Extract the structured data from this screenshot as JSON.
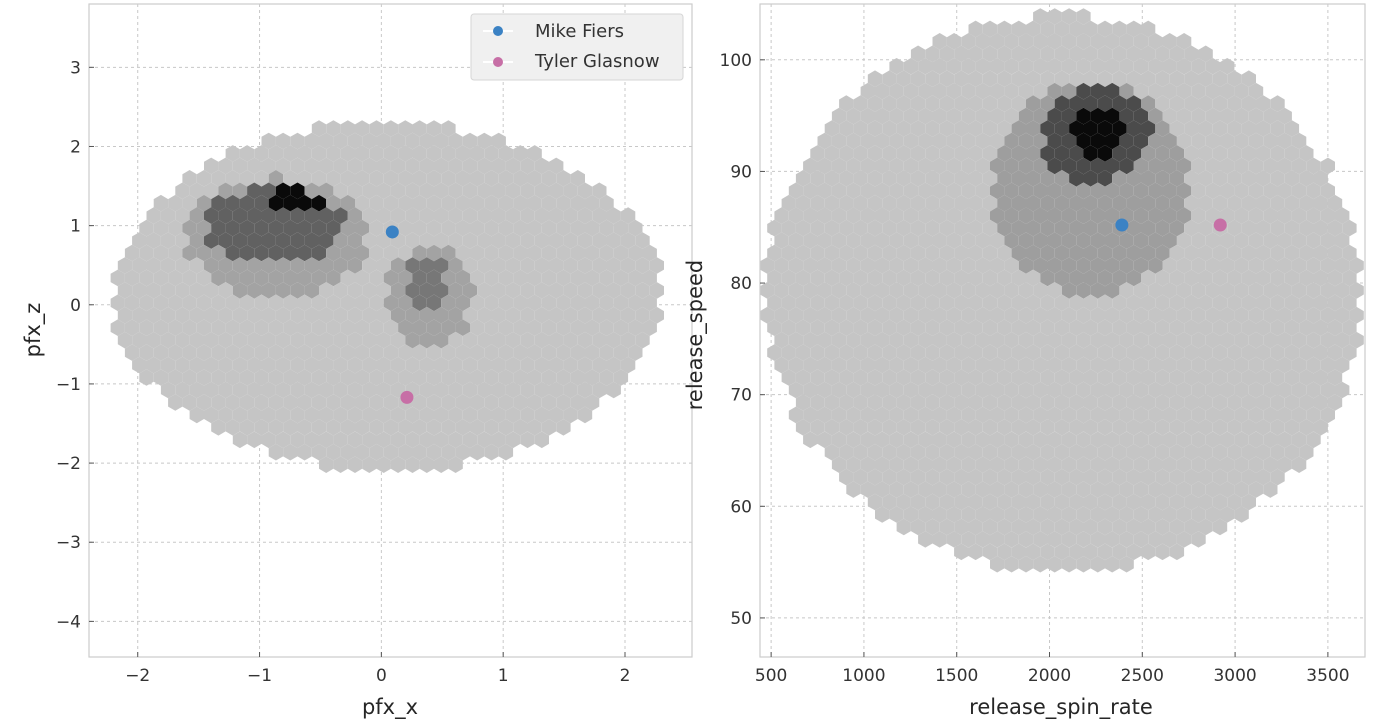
{
  "chart_data": [
    {
      "type": "hexbin",
      "xlabel": "pfx_x",
      "ylabel": "pfx_z",
      "xlim": [
        -2.4,
        2.55
      ],
      "ylim": [
        -4.45,
        3.8
      ],
      "xticks": [
        "−2",
        "−1",
        "0",
        "1",
        "2"
      ],
      "xtick_values": [
        -2,
        -1,
        0,
        1,
        2
      ],
      "yticks": [
        "−4",
        "−3",
        "−2",
        "−1",
        "0",
        "1",
        "2",
        "3"
      ],
      "ytick_values": [
        -4,
        -3,
        -2,
        -1,
        0,
        1,
        2,
        3
      ],
      "grid": true,
      "legend_position": "top-right",
      "background_density": {
        "colormap": "greys",
        "regions": [
          {
            "level": 0.14,
            "x": [
              -2.2,
              2.3
            ],
            "y": [
              -2.1,
              2.3
            ],
            "shape": "outer envelope"
          },
          {
            "level": 0.3,
            "x": [
              -1.6,
              -0.1
            ],
            "y": [
              0.1,
              1.6
            ],
            "shape": "curved band"
          },
          {
            "level": 0.6,
            "x": [
              -1.45,
              -0.3
            ],
            "y": [
              0.5,
              1.5
            ],
            "shape": "curved band core"
          },
          {
            "level": 1.0,
            "x": [
              -1.0,
              -0.4
            ],
            "y": [
              1.2,
              1.45
            ],
            "shape": "densest cluster"
          },
          {
            "level": 0.3,
            "x": [
              0.05,
              0.75
            ],
            "y": [
              -0.55,
              0.75
            ],
            "shape": "secondary cluster"
          },
          {
            "level": 0.5,
            "x": [
              0.2,
              0.55
            ],
            "y": [
              -0.1,
              0.6
            ],
            "shape": "secondary core"
          }
        ]
      },
      "series": [
        {
          "name": "Mike Fiers",
          "color": "#3b82c4",
          "x": [
            0.09
          ],
          "y": [
            0.92
          ]
        },
        {
          "name": "Tyler Glasnow",
          "color": "#c76fa6",
          "x": [
            0.21
          ],
          "y": [
            -1.17
          ]
        }
      ]
    },
    {
      "type": "hexbin",
      "xlabel": "release_spin_rate",
      "ylabel": "release_speed",
      "xlim": [
        440,
        3700
      ],
      "ylim": [
        46.5,
        105
      ],
      "xticks": [
        "500",
        "1000",
        "1500",
        "2000",
        "2500",
        "3000",
        "3500"
      ],
      "xtick_values": [
        500,
        1000,
        1500,
        2000,
        2500,
        3000,
        3500
      ],
      "yticks": [
        "50",
        "60",
        "70",
        "80",
        "90",
        "100"
      ],
      "ytick_values": [
        50,
        60,
        70,
        80,
        90,
        100
      ],
      "grid": true,
      "background_density": {
        "colormap": "greys",
        "regions": [
          {
            "level": 0.14,
            "x": [
              470,
              3680
            ],
            "y": [
              54,
              104
            ],
            "shape": "outer envelope"
          },
          {
            "level": 0.32,
            "x": [
              1700,
              2750
            ],
            "y": [
              79,
              98
            ],
            "shape": "mid cluster"
          },
          {
            "level": 0.7,
            "x": [
              1950,
              2550
            ],
            "y": [
              89,
              97.5
            ],
            "shape": "inner cluster"
          },
          {
            "level": 1.0,
            "x": [
              2100,
              2400
            ],
            "y": [
              91,
              96
            ],
            "shape": "densest cluster"
          }
        ]
      },
      "series": [
        {
          "name": "Mike Fiers",
          "color": "#3b82c4",
          "x": [
            2390
          ],
          "y": [
            85.2
          ]
        },
        {
          "name": "Tyler Glasnow",
          "color": "#c76fa6",
          "x": [
            2920
          ],
          "y": [
            85.2
          ]
        }
      ]
    }
  ]
}
